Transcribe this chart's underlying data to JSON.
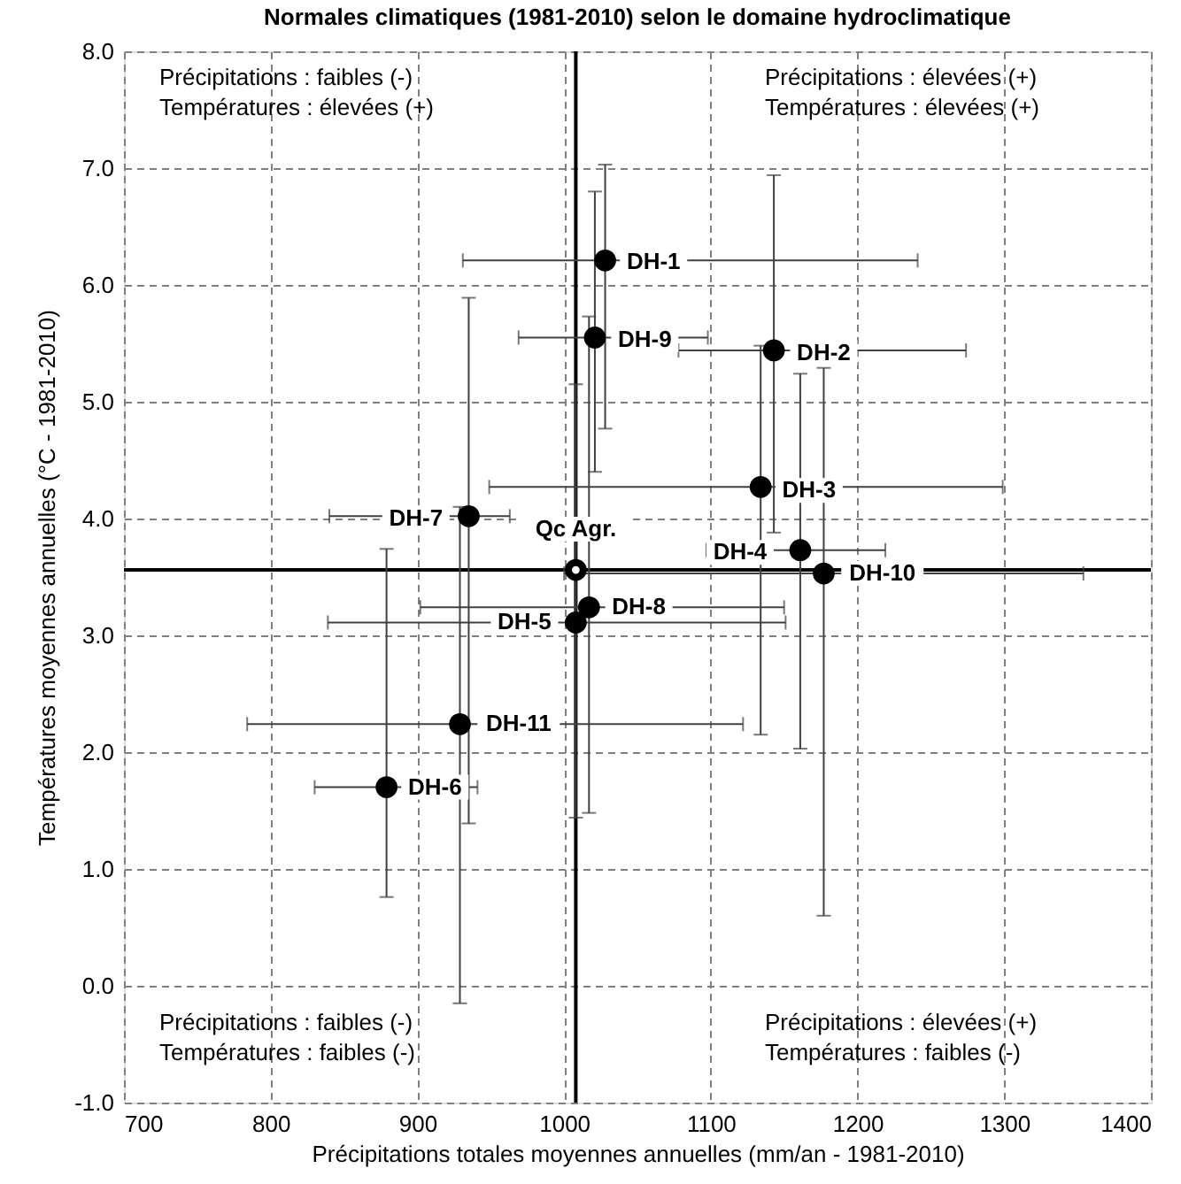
{
  "chart_data": {
    "type": "scatter",
    "title": "Normales climatiques (1981-2010) selon le domaine hydroclimatique",
    "xlabel": "Précipitations totales moyennes annuelles (mm/an - 1981-2010)",
    "ylabel": "Températures moyennes annuelles (°C - 1981-2010)",
    "xlim": [
      700,
      1400
    ],
    "xticks": [
      700,
      800,
      900,
      {
        "value": 1000,
        "label": "1000"
      },
      {
        "value": 1100,
        "label": "1100"
      },
      {
        "value": 1200,
        "label": "1200"
      },
      {
        "value": 1300,
        "label": "1300"
      },
      {
        "value": 1400,
        "label": "1400"
      }
    ],
    "ylim": [
      -1,
      8
    ],
    "yticks": [
      {
        "value": -1,
        "label": "-1.0"
      },
      {
        "value": 0,
        "label": "0.0"
      },
      {
        "value": 1,
        "label": "1.0"
      },
      {
        "value": 2,
        "label": "2.0"
      },
      {
        "value": 3,
        "label": "3.0"
      },
      {
        "value": 4,
        "label": "4.0"
      },
      {
        "value": 5,
        "label": "5.0"
      },
      {
        "value": 6,
        "label": "6.0"
      },
      {
        "value": 7,
        "label": "7.0"
      },
      {
        "value": 8,
        "label": "8.0"
      }
    ],
    "grid": true,
    "marker": "circle",
    "series": [
      {
        "color": "#000000",
        "x": [
          1028,
          1143,
          1134,
          1161,
          1008,
          879,
          935,
          1017,
          1021,
          1177,
          929
        ],
        "values": [
          6.21,
          5.44,
          4.27,
          3.73,
          3.11,
          1.7,
          4.02,
          3.24,
          5.55,
          3.53,
          2.24
        ],
        "errors": [
          [
            4.77,
            7.03
          ],
          [
            3.88,
            6.94
          ],
          [
            2.15,
            5.48
          ],
          [
            2.03,
            5.24
          ],
          [
            1.44,
            5.15
          ],
          [
            0.76,
            3.74
          ],
          [
            1.39,
            5.89
          ],
          [
            1.48,
            5.73
          ],
          [
            4.4,
            6.8
          ],
          [
            0.6,
            5.29
          ],
          [
            -0.15,
            4.1
          ]
        ],
        "xerrors": [
          [
            931,
            1241
          ],
          [
            1078,
            1274
          ],
          [
            949,
            1299
          ],
          [
            1097,
            1219
          ],
          [
            839,
            1151
          ],
          [
            830,
            941
          ],
          [
            840,
            963
          ],
          [
            902,
            1150
          ],
          [
            969,
            1098
          ],
          [
            1000,
            1354
          ],
          [
            784,
            1122
          ]
        ]
      },
      {
        "color": "#ffffff",
        "x": [
          1008
        ],
        "values": [
          3.56
        ]
      }
    ],
    "ref_lines": [
      {
        "axis": "x",
        "value": 1008,
        "color": "#000000"
      },
      {
        "axis": "y",
        "value": 3.56,
        "color": "#000000"
      }
    ],
    "annotations": [
      {
        "text": "DH-1",
        "x": 1061,
        "y": 6.2
      },
      {
        "text": "DH-2",
        "x": 1177,
        "y": 5.42
      },
      {
        "text": "DH-3",
        "x": 1167,
        "y": 4.24
      },
      {
        "text": "DH-4",
        "x": 1120,
        "y": 3.71
      },
      {
        "text": "DH-5",
        "x": 973,
        "y": 3.11
      },
      {
        "text": "DH-6",
        "x": 912,
        "y": 1.7
      },
      {
        "text": "DH-7",
        "x": 899,
        "y": 4.0
      },
      {
        "text": "DH-8",
        "x": 1051,
        "y": 3.24
      },
      {
        "text": "DH-9",
        "x": 1055,
        "y": 5.53
      },
      {
        "text": "DH-10",
        "x": 1217,
        "y": 3.53
      },
      {
        "text": "DH-11",
        "x": 969,
        "y": 2.24
      },
      {
        "text": "Qc Agr.",
        "x": 1008,
        "y": 3.91
      },
      "Précipitations : faibles (-)\nTempératures : élevées (+)",
      "Précipitations : élevées (+)\nTempératures : élevées (+)",
      "Précipitations : faibles (-)\nTempératures : faibles (-)",
      "Précipitations : élevées (+)\nTempératures : faibles (-)"
    ]
  }
}
